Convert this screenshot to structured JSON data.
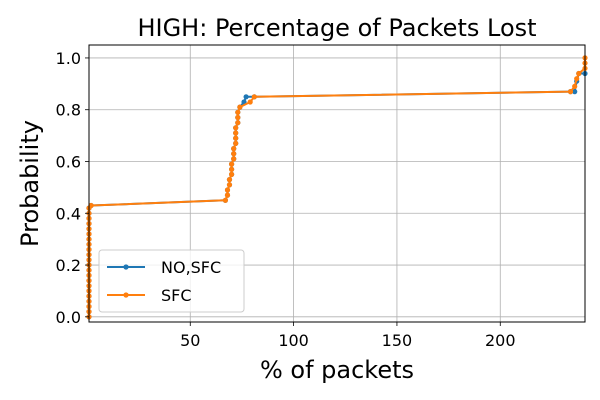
{
  "chart_data": {
    "type": "line",
    "title": "HIGH: Percentage of Packets Lost",
    "xlabel": "% of packets",
    "ylabel": "Probability",
    "xlim": [
      1,
      241
    ],
    "ylim": [
      -0.02,
      1.05
    ],
    "x_ticks": [
      50,
      100,
      150,
      200
    ],
    "y_ticks": [
      0.0,
      0.2,
      0.4,
      0.6,
      0.8,
      1.0
    ],
    "x_tick_labels": [
      "50",
      "100",
      "150",
      "200"
    ],
    "y_tick_labels": [
      "0.0",
      "0.2",
      "0.4",
      "0.6",
      "0.8",
      "1.0"
    ],
    "grid": true,
    "legend_position": "lower-left",
    "series": [
      {
        "name": "NO,SFC",
        "color": "#1f77b4",
        "points": [
          [
            1,
            0.0
          ],
          [
            1,
            0.02
          ],
          [
            1,
            0.04
          ],
          [
            1,
            0.06
          ],
          [
            1,
            0.08
          ],
          [
            1,
            0.1
          ],
          [
            1,
            0.12
          ],
          [
            1,
            0.14
          ],
          [
            1,
            0.16
          ],
          [
            1,
            0.18
          ],
          [
            1,
            0.2
          ],
          [
            1,
            0.22
          ],
          [
            1,
            0.24
          ],
          [
            1,
            0.26
          ],
          [
            1,
            0.28
          ],
          [
            1,
            0.3
          ],
          [
            1,
            0.32
          ],
          [
            1,
            0.34
          ],
          [
            1,
            0.36
          ],
          [
            1,
            0.38
          ],
          [
            1,
            0.4
          ],
          [
            1,
            0.42
          ],
          [
            2,
            0.43
          ],
          [
            67,
            0.45
          ],
          [
            68,
            0.47
          ],
          [
            68,
            0.49
          ],
          [
            69,
            0.51
          ],
          [
            69,
            0.53
          ],
          [
            70,
            0.55
          ],
          [
            70,
            0.57
          ],
          [
            70,
            0.59
          ],
          [
            71,
            0.61
          ],
          [
            71,
            0.63
          ],
          [
            71,
            0.65
          ],
          [
            72,
            0.67
          ],
          [
            72,
            0.69
          ],
          [
            72,
            0.71
          ],
          [
            72,
            0.73
          ],
          [
            73,
            0.75
          ],
          [
            73,
            0.77
          ],
          [
            73,
            0.79
          ],
          [
            74,
            0.81
          ],
          [
            76,
            0.83
          ],
          [
            77,
            0.85
          ],
          [
            81,
            0.85
          ],
          [
            234,
            0.87
          ],
          [
            236,
            0.87
          ],
          [
            237,
            0.91
          ],
          [
            238,
            0.94
          ],
          [
            241,
            0.94
          ]
        ]
      },
      {
        "name": "SFC",
        "color": "#ff7f0e",
        "points": [
          [
            1,
            0.0
          ],
          [
            1,
            0.02
          ],
          [
            1,
            0.04
          ],
          [
            1,
            0.06
          ],
          [
            1,
            0.08
          ],
          [
            1,
            0.1
          ],
          [
            1,
            0.12
          ],
          [
            1,
            0.14
          ],
          [
            1,
            0.16
          ],
          [
            1,
            0.18
          ],
          [
            1,
            0.2
          ],
          [
            1,
            0.22
          ],
          [
            1,
            0.24
          ],
          [
            1,
            0.26
          ],
          [
            1,
            0.28
          ],
          [
            1,
            0.3
          ],
          [
            1,
            0.32
          ],
          [
            1,
            0.34
          ],
          [
            1,
            0.36
          ],
          [
            1,
            0.38
          ],
          [
            1,
            0.4
          ],
          [
            1,
            0.42
          ],
          [
            2,
            0.43
          ],
          [
            67,
            0.45
          ],
          [
            68,
            0.47
          ],
          [
            68,
            0.49
          ],
          [
            69,
            0.51
          ],
          [
            69,
            0.53
          ],
          [
            70,
            0.55
          ],
          [
            70,
            0.57
          ],
          [
            70,
            0.59
          ],
          [
            71,
            0.61
          ],
          [
            71,
            0.63
          ],
          [
            71,
            0.65
          ],
          [
            72,
            0.67
          ],
          [
            72,
            0.69
          ],
          [
            72,
            0.71
          ],
          [
            72,
            0.73
          ],
          [
            73,
            0.75
          ],
          [
            73,
            0.77
          ],
          [
            73,
            0.79
          ],
          [
            74,
            0.81
          ],
          [
            79,
            0.83
          ],
          [
            81,
            0.85
          ],
          [
            234,
            0.87
          ],
          [
            236,
            0.89
          ],
          [
            237,
            0.92
          ],
          [
            238,
            0.94
          ],
          [
            241,
            0.96
          ],
          [
            241,
            0.98
          ],
          [
            241,
            1.0
          ]
        ]
      }
    ]
  }
}
